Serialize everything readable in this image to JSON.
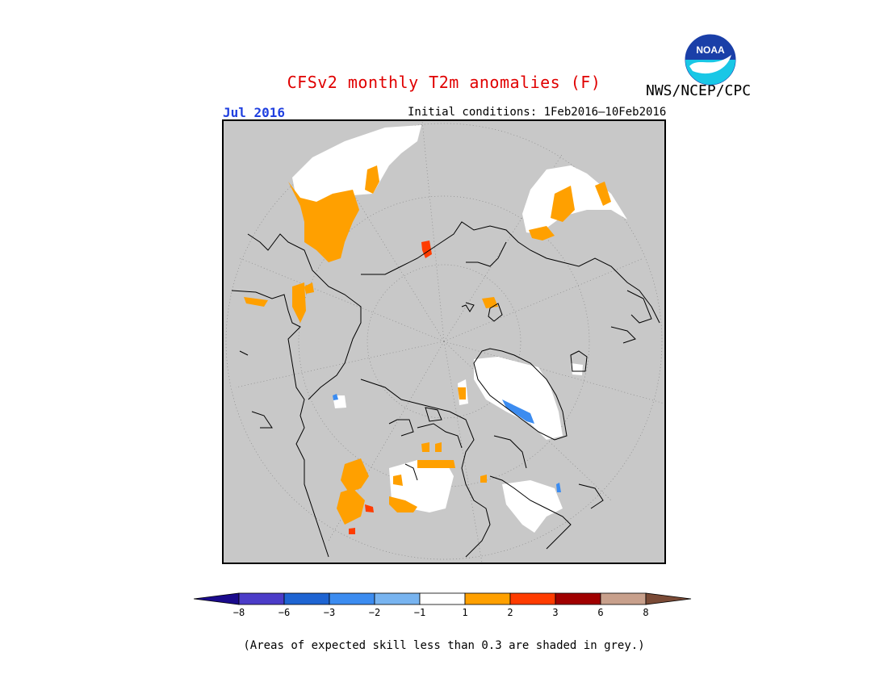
{
  "title": "CFSv2 monthly T2m anomalies (F)",
  "valid_month": "Jul 2016",
  "initial_conditions": "Initial conditions: 1Feb2016–10Feb2016",
  "agency": "NWS/NCEP/CPC",
  "logo": {
    "text": "NOAA",
    "colors": {
      "dark": "#1a3fa8",
      "light": "#19c7e6",
      "white": "#ffffff"
    }
  },
  "map": {
    "projection": "north-polar-stereographic",
    "background_color": "#c8c8c8",
    "grid_color": "#888888"
  },
  "legend": {
    "colors": [
      "#1a0a8c",
      "#4b3cc8",
      "#1e64d2",
      "#3c8cf0",
      "#78b4f0",
      "#ffffff",
      "#ffa000",
      "#ff3c00",
      "#a00000",
      "#c8a08c",
      "#7a4a36"
    ],
    "labels": [
      "−8",
      "−6",
      "−3",
      "−2",
      "−1",
      "1",
      "2",
      "3",
      "6",
      "8"
    ]
  },
  "footnote": "(Areas of expected skill less than 0.3 are shaded in grey.)"
}
